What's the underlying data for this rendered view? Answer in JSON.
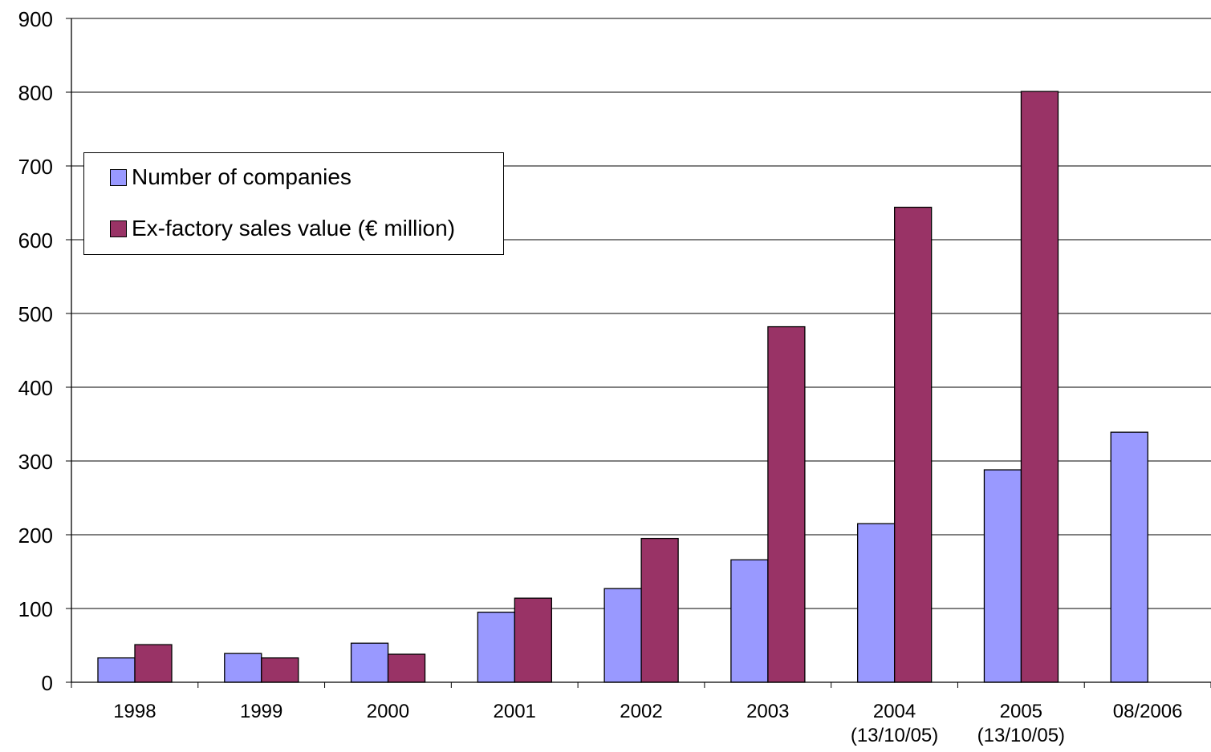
{
  "chart_data": {
    "type": "bar",
    "categories": [
      "1998",
      "1999",
      "2000",
      "2001",
      "2002",
      "2003",
      "2004\n(13/10/05)",
      "2005\n(13/10/05)",
      "08/2006"
    ],
    "series": [
      {
        "name": "Number of companies",
        "color": "#9999ff",
        "values": [
          33,
          39,
          53,
          95,
          127,
          166,
          215,
          288,
          339
        ]
      },
      {
        "name": "Ex-factory sales value (€ million)",
        "color": "#993366",
        "values": [
          51,
          33,
          38,
          114,
          195,
          482,
          644,
          801,
          null
        ]
      }
    ],
    "ylim": [
      0,
      900
    ],
    "yticks": [
      0,
      100,
      200,
      300,
      400,
      500,
      600,
      700,
      800,
      900
    ],
    "grid": true,
    "legend_position": "top-left"
  }
}
